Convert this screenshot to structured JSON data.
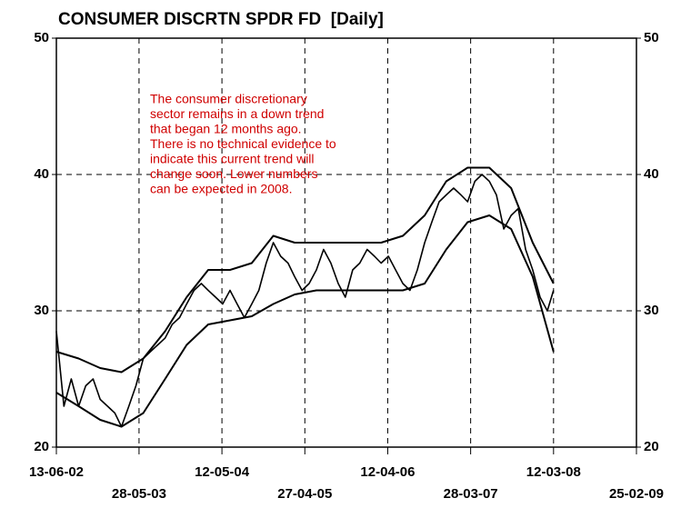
{
  "chart_data": {
    "type": "line",
    "title": "CONSUMER DISCRTN SPDR FD  [Daily]",
    "annotation": [
      "The consumer discretionary",
      "sector remains in a down trend",
      "that began 12 months ago.",
      "There is no technical evidence to",
      "indicate this current trend will",
      "change soon.  Lower numbers",
      "can be expected in 2008."
    ],
    "ylim": [
      20,
      50
    ],
    "yticks": [
      20,
      30,
      40,
      50
    ],
    "xlim": [
      "2002-06-13",
      "2009-02-25"
    ],
    "xticks": [
      {
        "value": "2002-06-13",
        "label": "13-06-02"
      },
      {
        "value": "2003-05-28",
        "label": "28-05-03"
      },
      {
        "value": "2004-05-12",
        "label": "12-05-04"
      },
      {
        "value": "2005-04-27",
        "label": "27-04-05"
      },
      {
        "value": "2006-04-12",
        "label": "12-04-06"
      },
      {
        "value": "2007-03-28",
        "label": "28-03-07"
      },
      {
        "value": "2008-03-12",
        "label": "12-03-08"
      },
      {
        "value": "2009-02-25",
        "label": "25-02-09"
      }
    ],
    "grid": true,
    "series": [
      {
        "color": "#000000",
        "x": [
          "2002-06-13",
          "2002-07-15",
          "2002-08-15",
          "2002-09-15",
          "2002-10-15",
          "2002-11-15",
          "2002-12-15",
          "2003-01-15",
          "2003-02-15",
          "2003-03-15",
          "2003-04-15",
          "2003-05-15",
          "2003-06-15",
          "2003-07-15",
          "2003-08-15",
          "2003-09-15",
          "2003-10-15",
          "2003-11-15",
          "2003-12-15",
          "2004-01-15",
          "2004-02-15",
          "2004-03-15",
          "2004-04-15",
          "2004-05-15",
          "2004-06-15",
          "2004-07-15",
          "2004-08-15",
          "2004-09-15",
          "2004-10-15",
          "2004-11-15",
          "2004-12-15",
          "2005-01-15",
          "2005-02-15",
          "2005-03-15",
          "2005-04-15",
          "2005-05-15",
          "2005-06-15",
          "2005-07-15",
          "2005-08-15",
          "2005-09-15",
          "2005-10-15",
          "2005-11-15",
          "2005-12-15",
          "2006-01-15",
          "2006-02-15",
          "2006-03-15",
          "2006-04-15",
          "2006-05-15",
          "2006-06-15",
          "2006-07-15",
          "2006-08-15",
          "2006-09-15",
          "2006-10-15",
          "2006-11-15",
          "2006-12-15",
          "2007-01-15",
          "2007-02-15",
          "2007-03-15",
          "2007-04-15",
          "2007-05-15",
          "2007-06-15",
          "2007-07-15",
          "2007-08-15",
          "2007-09-15",
          "2007-10-15",
          "2007-11-15",
          "2007-12-15",
          "2008-01-15",
          "2008-02-15",
          "2008-03-12"
        ],
        "values": [
          28.5,
          23,
          25,
          23,
          24.5,
          25,
          23.5,
          23,
          22.5,
          21.5,
          23,
          24.5,
          26.5,
          27,
          27.5,
          28,
          29,
          29.5,
          30.5,
          31.5,
          32,
          31.5,
          31,
          30.5,
          31.5,
          30.5,
          29.5,
          30.5,
          31.5,
          33.5,
          35,
          34,
          33.5,
          32.5,
          31.5,
          32,
          33,
          34.5,
          33.5,
          32,
          31,
          33,
          33.5,
          34.5,
          34,
          33.5,
          34,
          33,
          32,
          31.5,
          33,
          35,
          36.5,
          38,
          38.5,
          39,
          38.5,
          38,
          39.5,
          40,
          39.5,
          38.5,
          36,
          37,
          37.5,
          34.5,
          33,
          31,
          30,
          31.5
        ]
      },
      {
        "color": "#000000",
        "x": [
          "2002-06-13",
          "2002-09-15",
          "2002-12-15",
          "2003-03-15",
          "2003-06-15",
          "2003-09-15",
          "2003-12-15",
          "2004-03-15",
          "2004-06-15",
          "2004-09-15",
          "2004-12-15",
          "2005-03-15",
          "2005-06-15",
          "2005-09-15",
          "2005-12-15",
          "2006-03-15",
          "2006-06-15",
          "2006-09-15",
          "2006-12-15",
          "2007-03-15",
          "2007-06-15",
          "2007-09-15",
          "2007-12-15",
          "2008-03-12"
        ],
        "values": [
          27,
          26.5,
          25.8,
          25.5,
          26.5,
          28.5,
          31,
          33,
          33,
          33.5,
          35.5,
          35,
          35,
          35,
          35,
          35,
          35.5,
          37,
          39.5,
          40.5,
          40.5,
          39,
          35,
          32
        ]
      },
      {
        "color": "#000000",
        "x": [
          "2002-06-13",
          "2002-09-15",
          "2002-12-15",
          "2003-03-15",
          "2003-06-15",
          "2003-09-15",
          "2003-12-15",
          "2004-03-15",
          "2004-06-15",
          "2004-09-15",
          "2004-12-15",
          "2005-03-15",
          "2005-06-15",
          "2005-09-15",
          "2005-12-15",
          "2006-03-15",
          "2006-06-15",
          "2006-09-15",
          "2006-12-15",
          "2007-03-15",
          "2007-06-15",
          "2007-09-15",
          "2007-12-15",
          "2008-03-12"
        ],
        "values": [
          24,
          23,
          22,
          21.5,
          22.5,
          25,
          27.5,
          29,
          29.3,
          29.6,
          30.5,
          31.2,
          31.5,
          31.5,
          31.5,
          31.5,
          31.5,
          32,
          34.5,
          36.5,
          37,
          36,
          32.5,
          27
        ]
      }
    ]
  }
}
